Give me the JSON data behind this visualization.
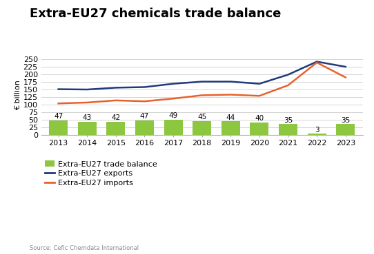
{
  "title": "Extra-EU27 chemicals trade balance",
  "ylabel": "€ billion",
  "source": "Source: Cefic Chemdata International",
  "years": [
    2013,
    2014,
    2015,
    2016,
    2017,
    2018,
    2019,
    2020,
    2021,
    2022,
    2023
  ],
  "trade_balance": [
    47,
    43,
    42,
    47,
    49,
    45,
    44,
    40,
    35,
    3,
    35
  ],
  "exports": [
    150,
    149,
    155,
    157,
    168,
    175,
    175,
    168,
    198,
    241,
    224
  ],
  "imports": [
    103,
    106,
    113,
    110,
    119,
    130,
    132,
    128,
    163,
    238,
    189
  ],
  "bar_color": "#8DC63F",
  "exports_color": "#1F3A7D",
  "imports_color": "#E8612C",
  "ylim": [
    0,
    260
  ],
  "yticks": [
    0,
    25,
    50,
    75,
    100,
    125,
    150,
    175,
    200,
    225,
    250
  ],
  "background_color": "#FFFFFF",
  "grid_color": "#CCCCCC",
  "title_fontsize": 13,
  "axis_fontsize": 8,
  "legend_fontsize": 8,
  "bar_label_fontsize": 7.5
}
